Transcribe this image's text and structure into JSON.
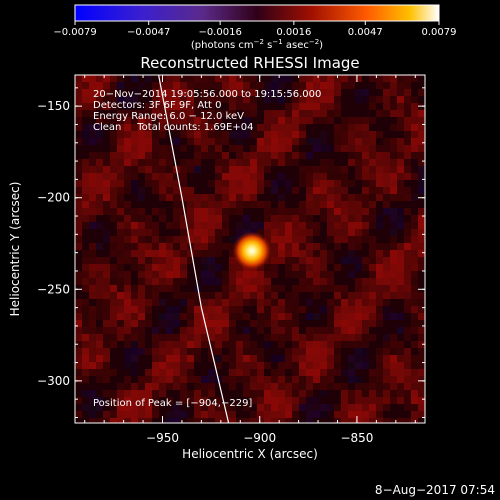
{
  "chart_data": {
    "type": "heatmap",
    "title": "Reconstructed RHESSI Image",
    "xlabel": "Heliocentric X (arcsec)",
    "ylabel": "Heliocentric Y (arcsec)",
    "xlim": [
      -995,
      -815
    ],
    "ylim": [
      -323,
      -133
    ],
    "x_ticks": [
      -950,
      -900,
      -850
    ],
    "x_tick_labels": [
      "−950",
      "−900",
      "−850"
    ],
    "y_ticks": [
      -150,
      -200,
      -250,
      -300
    ],
    "y_tick_labels": [
      "−150",
      "−200",
      "−250",
      "−300"
    ],
    "colorbar": {
      "min": -0.0079,
      "max": 0.0079,
      "ticks": [
        -0.0079,
        -0.0047,
        -0.0016,
        0.0016,
        0.0047,
        0.0079
      ],
      "tick_labels": [
        "−0.0079",
        "−0.0047",
        "−0.0016",
        "0.0016",
        "0.0047",
        "0.0079"
      ],
      "unit_label_parts": [
        "(photons cm",
        "−2",
        " s",
        "−1",
        " asec",
        "−2",
        ")"
      ]
    },
    "annotations": [
      "20−Nov−2014 19:05:56.000 to 19:15:56.000",
      "Detectors: 3F 6F 9F, Att 0",
      "Energy Range: 6.0 − 12.0 keV",
      "Clean     Total counts: 1.69E+04"
    ],
    "peak_label": "Position of Peak = [−904,−229]",
    "peak": {
      "x": -904,
      "y": -229
    },
    "limb_points": [
      [
        -952,
        -133
      ],
      [
        -940,
        -200
      ],
      [
        -930,
        -260
      ],
      [
        -916,
        -323
      ]
    ]
  },
  "footer": {
    "date": "8−Aug−2017 07:54"
  }
}
